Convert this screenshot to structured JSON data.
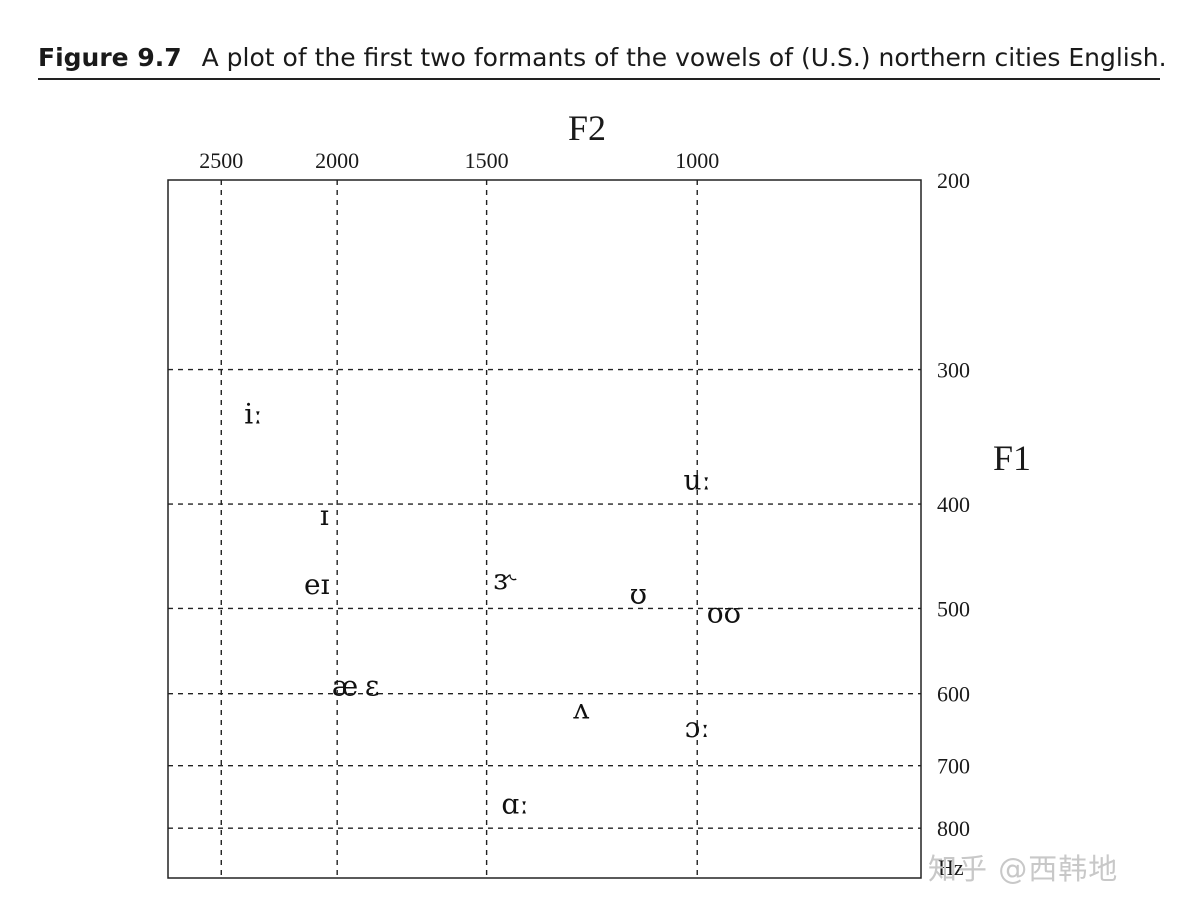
{
  "caption": {
    "figure_label": "Figure 9.7",
    "text": "A plot of the first two formants of the vowels of (U.S.) northern cities English."
  },
  "watermark": "知乎 @西韩地",
  "chart_data": {
    "type": "scatter",
    "title": "",
    "xlabel": "F2",
    "ylabel": "F1",
    "x_axis": {
      "position": "top",
      "reversed": true,
      "scale": "log",
      "ticks": [
        2500,
        2000,
        1500,
        1000
      ],
      "tick_labels": [
        "2500",
        "2000",
        "1500",
        "1000"
      ],
      "range": [
        2770,
        650
      ]
    },
    "y_axis": {
      "position": "right",
      "reversed": true,
      "scale": "log",
      "ticks": [
        200,
        300,
        400,
        500,
        600,
        700,
        800
      ],
      "tick_labels": [
        "200",
        "300",
        "400",
        "500",
        "600",
        "700",
        "800"
      ],
      "range": [
        200,
        890
      ],
      "unit_label": "Hz"
    },
    "grid": "dashed",
    "points": [
      {
        "label": "iː",
        "x": 2350,
        "y": 330
      },
      {
        "label": "ɪ",
        "x": 2050,
        "y": 410
      },
      {
        "label": "eɪ",
        "x": 2080,
        "y": 475
      },
      {
        "label": "æ",
        "x": 1970,
        "y": 590
      },
      {
        "label": "ɛ",
        "x": 1870,
        "y": 590
      },
      {
        "label": "ɝ",
        "x": 1450,
        "y": 470
      },
      {
        "label": "ʊ",
        "x": 1120,
        "y": 485
      },
      {
        "label": "uː",
        "x": 1000,
        "y": 380
      },
      {
        "label": "oʊ",
        "x": 950,
        "y": 505
      },
      {
        "label": "ʌ",
        "x": 1250,
        "y": 620
      },
      {
        "label": "ɔː",
        "x": 1000,
        "y": 645
      },
      {
        "label": "ɑː",
        "x": 1420,
        "y": 760
      }
    ]
  }
}
